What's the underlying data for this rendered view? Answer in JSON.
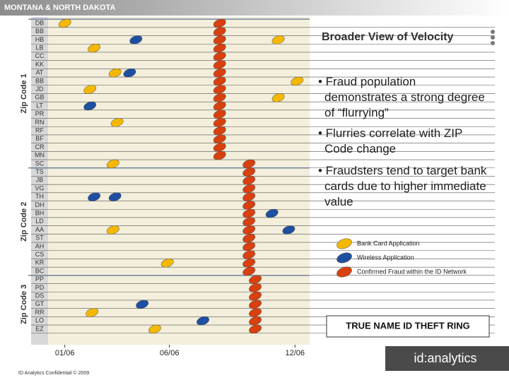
{
  "chart_data": {
    "type": "scatter",
    "header": "MONTANA & NORTH DAKOTA",
    "title": "Broader View of Velocity",
    "bullets": [
      "• Fraud population demonstrates a strong degree of “flurrying”",
      "• Flurries correlate with ZIP Code change",
      "• Fraudsters tend to target bank cards due to higher immediate value"
    ],
    "categories": [
      "DB",
      "BB",
      "HB",
      "LB",
      "CC",
      "KK",
      "AT",
      "BB",
      "JD",
      "GB",
      "LT",
      "PR",
      "RN",
      "RF",
      "BF",
      "CR",
      "MN",
      "SC",
      "TS",
      "JB",
      "VG",
      "TH",
      "DH",
      "BH",
      "LD",
      "AA",
      "ST",
      "AH",
      "CS",
      "KR",
      "BC",
      "PP",
      "PD",
      "DS",
      "GT",
      "RR",
      "LO",
      "EZ"
    ],
    "groups": [
      {
        "name": "Zip Code 1",
        "rows": [
          0,
          17
        ]
      },
      {
        "name": "Zip Code 2",
        "rows": [
          18,
          30
        ]
      },
      {
        "name": "Zip Code 3",
        "rows": [
          31,
          37
        ]
      }
    ],
    "xlim": [
      0.2,
      12.7
    ],
    "xticks": [
      {
        "value": 1,
        "label": "01/06"
      },
      {
        "value": 6,
        "label": "06/06"
      },
      {
        "value": 12,
        "label": "12/06"
      }
    ],
    "series": [
      {
        "name": "Bank Card Application",
        "color": "#f5b800",
        "x": [
          1.0,
          2.4,
          11.2,
          3.4,
          12.1,
          2.2,
          11.2,
          3.5,
          3.3,
          3.3,
          5.9,
          2.3,
          5.3
        ],
        "y": [
          0,
          3,
          2,
          6,
          7,
          8,
          9,
          12,
          17,
          25,
          29,
          35,
          37
        ]
      },
      {
        "name": "Wireless Application",
        "color": "#1f4fa0",
        "x": [
          4.4,
          4.1,
          2.2,
          2.4,
          3.4,
          10.9,
          11.7,
          4.7,
          7.6
        ],
        "y": [
          2,
          6,
          10,
          21,
          21,
          23,
          25,
          34,
          36
        ]
      },
      {
        "name": "Confirmed Fraud within the ID Network",
        "color": "#d94010",
        "x": [
          8.4,
          8.4,
          8.4,
          8.4,
          8.4,
          8.4,
          8.4,
          8.4,
          8.4,
          8.4,
          8.4,
          8.4,
          8.4,
          8.4,
          8.4,
          8.4,
          8.4,
          9.8,
          9.8,
          9.8,
          9.8,
          9.8,
          9.8,
          9.8,
          9.8,
          9.8,
          9.8,
          9.8,
          9.8,
          9.8,
          9.8,
          10.1,
          10.1,
          10.1,
          10.1,
          10.1,
          10.1,
          10.1
        ],
        "y": [
          0,
          1,
          2,
          3,
          4,
          5,
          6,
          7,
          8,
          9,
          10,
          11,
          12,
          13,
          14,
          15,
          16,
          17,
          18,
          19,
          20,
          21,
          22,
          23,
          24,
          25,
          26,
          27,
          28,
          29,
          30,
          31,
          32,
          33,
          34,
          35,
          36,
          37
        ]
      }
    ],
    "callout": "TRUE NAME ID THEFT RING",
    "footer": "ID Analytics Confidential © 2009",
    "logo": "id:analytics"
  }
}
